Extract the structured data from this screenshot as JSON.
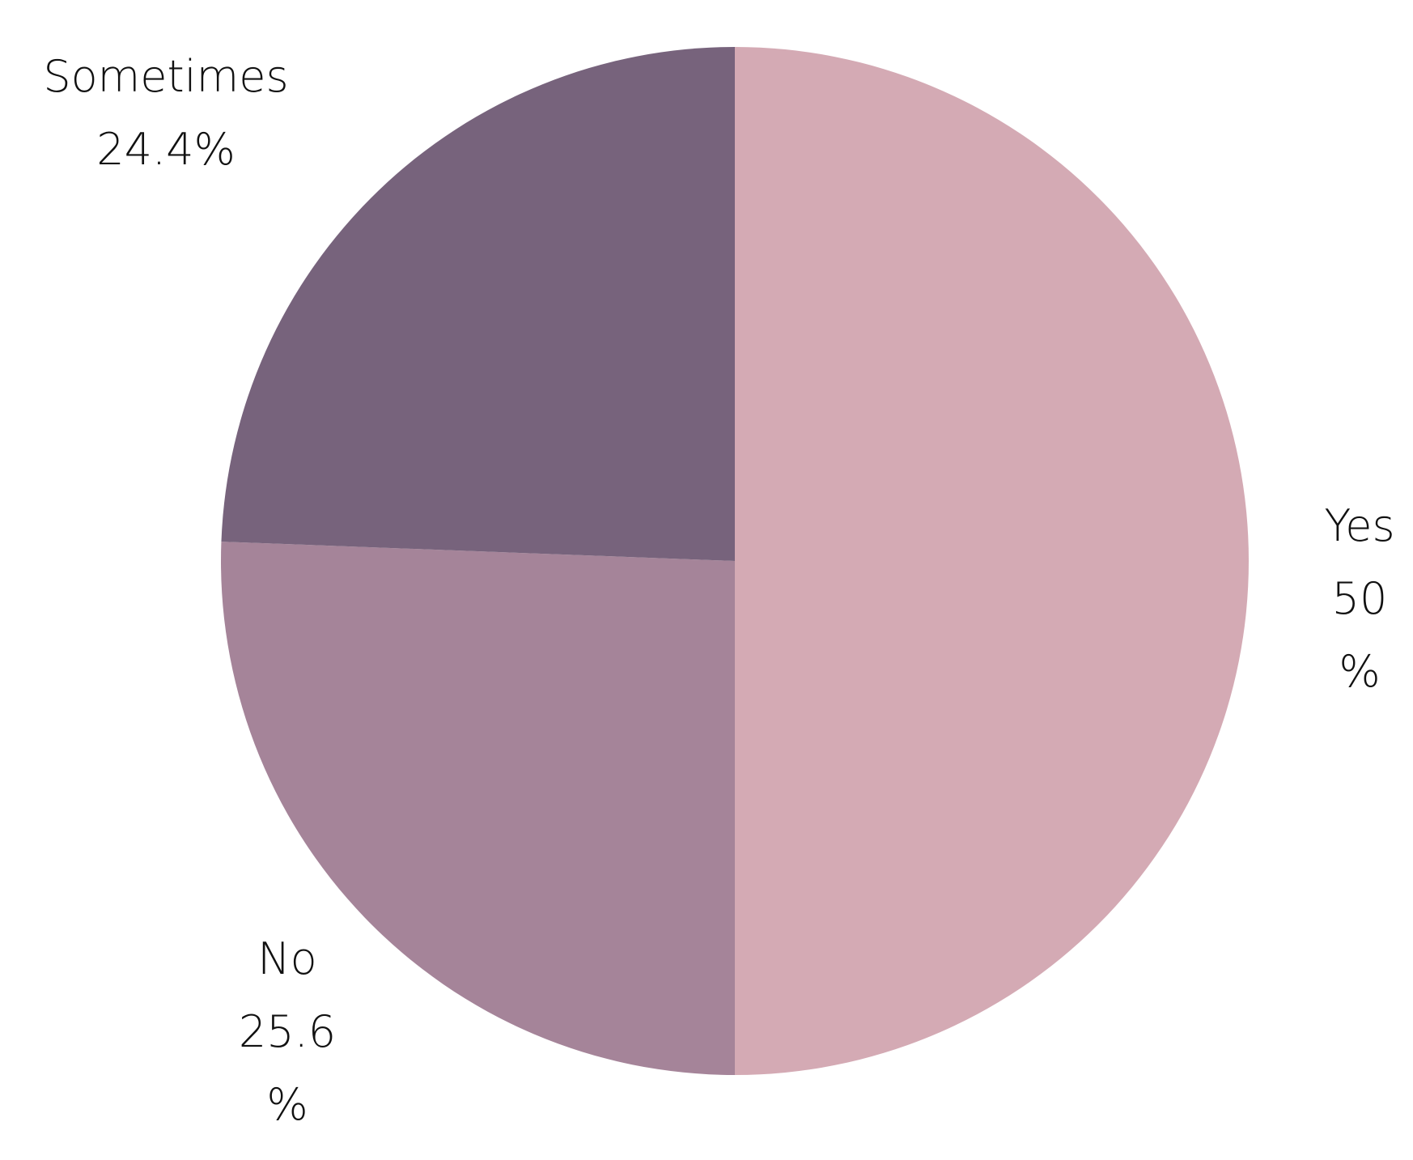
{
  "chart_data": {
    "type": "pie",
    "categories": [
      "Yes",
      "No",
      "Sometimes"
    ],
    "values": [
      50,
      25.6,
      24.4
    ],
    "value_labels": [
      "50%",
      "25.6%",
      "24.4%"
    ],
    "colors": [
      "#d4aab4",
      "#a58499",
      "#77637c"
    ]
  }
}
